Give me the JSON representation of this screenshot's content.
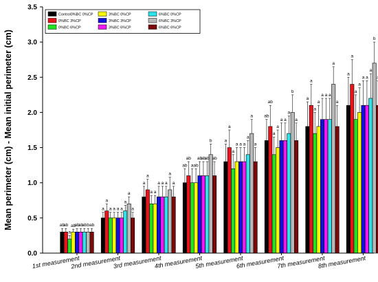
{
  "chart_data": {
    "type": "bar",
    "title": "",
    "xlabel": "",
    "ylabel": "Mean perimeter (cm) - Mean initial perimeter (cm)",
    "ylim": [
      0,
      3.5
    ],
    "yticks": [
      "0.0",
      "0.5",
      "1.0",
      "1.5",
      "2.0",
      "2.5",
      "3.0",
      "3.5"
    ],
    "grid": false,
    "legend_position": "top-left",
    "categories": [
      "1st measurement",
      "2nd measurement",
      "3rd measurement",
      "4th measurement",
      "5th measurement",
      "6th measurement",
      "7th measurement",
      "8th measurement"
    ],
    "series": [
      {
        "name": "Control0%BC 0%CP",
        "color": "#000000",
        "values": [
          0.3,
          0.5,
          0.8,
          1.0,
          1.3,
          1.6,
          1.8,
          2.1
        ],
        "errors": [
          0.05,
          0.08,
          0.15,
          0.2,
          0.25,
          0.3,
          0.35,
          0.4
        ],
        "labels": [
          "ab",
          "a",
          "a",
          "ab",
          "a",
          "ab",
          "a",
          "a"
        ]
      },
      {
        "name": "0%BC 3%CP",
        "color": "#e8141c",
        "values": [
          0.3,
          0.6,
          0.9,
          1.1,
          1.5,
          1.8,
          2.1,
          2.4
        ],
        "errors": [
          0.05,
          0.1,
          0.15,
          0.2,
          0.25,
          0.3,
          0.3,
          0.35
        ],
        "labels": [
          "ab",
          "a",
          "a",
          "ab",
          "a",
          "ab",
          "a",
          "a"
        ]
      },
      {
        "name": "0%BC 6%CP",
        "color": "#22e022",
        "values": [
          0.2,
          0.5,
          0.7,
          1.0,
          1.2,
          1.4,
          1.7,
          1.9
        ],
        "errors": [
          0.05,
          0.08,
          0.12,
          0.2,
          0.2,
          0.25,
          0.3,
          0.35
        ],
        "labels": [
          "a",
          "a",
          "a",
          "a",
          "a",
          "a",
          "a",
          "a"
        ]
      },
      {
        "name": "3%BC 0%CP",
        "color": "#f7f700",
        "values": [
          0.3,
          0.5,
          0.7,
          1.0,
          1.3,
          1.5,
          1.8,
          2.0
        ],
        "errors": [
          0.04,
          0.08,
          0.12,
          0.2,
          0.2,
          0.25,
          0.3,
          0.35
        ],
        "labels": [
          "ab",
          "a",
          "a",
          "ab",
          "a",
          "a",
          "a",
          "a"
        ]
      },
      {
        "name": "3%BC 3%CP",
        "color": "#1010e0",
        "values": [
          0.3,
          0.5,
          0.8,
          1.1,
          1.3,
          1.6,
          1.9,
          2.1
        ],
        "errors": [
          0.05,
          0.08,
          0.15,
          0.2,
          0.2,
          0.25,
          0.3,
          0.35
        ],
        "labels": [
          "ab",
          "a",
          "a",
          "ab",
          "a",
          "a",
          "a",
          "a"
        ]
      },
      {
        "name": "3%BC 6%CP",
        "color": "#f018f0",
        "values": [
          0.3,
          0.5,
          0.8,
          1.1,
          1.3,
          1.6,
          1.9,
          2.1
        ],
        "errors": [
          0.05,
          0.08,
          0.15,
          0.2,
          0.2,
          0.25,
          0.3,
          0.35
        ],
        "labels": [
          "ab",
          "a",
          "a",
          "ab",
          "a",
          "a",
          "a",
          "a"
        ]
      },
      {
        "name": "6%BC 0%CP",
        "color": "#30e0e8",
        "values": [
          0.3,
          0.6,
          0.8,
          1.1,
          1.4,
          1.7,
          1.9,
          2.2
        ],
        "errors": [
          0.05,
          0.08,
          0.15,
          0.2,
          0.2,
          0.25,
          0.3,
          0.35
        ],
        "labels": [
          "ab",
          "a",
          "a",
          "ab",
          "a",
          "a",
          "a",
          "a"
        ]
      },
      {
        "name": "6%BC 3%CP",
        "color": "#b8b8b8",
        "values": [
          0.3,
          0.7,
          0.9,
          1.4,
          1.7,
          2.0,
          2.4,
          2.7
        ],
        "errors": [
          0.05,
          0.1,
          0.18,
          0.15,
          0.2,
          0.25,
          0.25,
          0.3
        ],
        "labels": [
          "b",
          "a",
          "a",
          "b",
          "a",
          "b",
          "a",
          "b"
        ]
      },
      {
        "name": "6%BC 6%CP",
        "color": "#7a0a0a",
        "values": [
          0.3,
          0.5,
          0.8,
          1.1,
          1.3,
          1.6,
          1.8,
          2.1
        ],
        "errors": [
          0.05,
          0.08,
          0.15,
          0.2,
          0.2,
          0.25,
          0.3,
          0.35
        ],
        "labels": [
          "ab",
          "a",
          "a",
          "ab",
          "a",
          "a",
          "a",
          "a"
        ]
      }
    ]
  }
}
